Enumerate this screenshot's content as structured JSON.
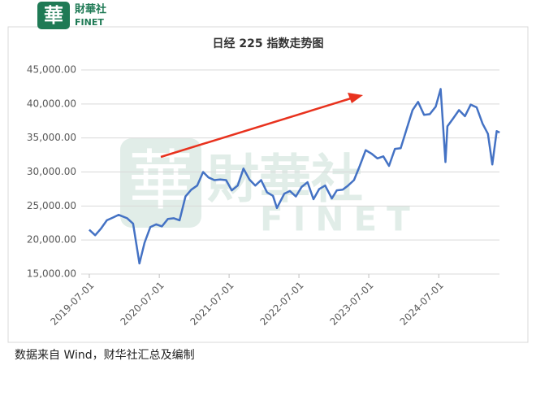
{
  "logo": {
    "mark": "華",
    "name": "財華社",
    "en": "FINET"
  },
  "chart_data": {
    "type": "line",
    "title": "日经 225 指数走势图",
    "x": [
      "2019-07-01",
      "2019-08-01",
      "2019-09-01",
      "2019-10-01",
      "2019-11-01",
      "2019-12-01",
      "2020-01-15",
      "2020-02-15",
      "2020-03-19",
      "2020-04-15",
      "2020-05-15",
      "2020-06-15",
      "2020-07-15",
      "2020-08-15",
      "2020-09-15",
      "2020-10-15",
      "2020-11-15",
      "2020-12-15",
      "2021-01-15",
      "2021-02-15",
      "2021-03-15",
      "2021-04-15",
      "2021-05-15",
      "2021-06-15",
      "2021-07-15",
      "2021-08-15",
      "2021-09-14",
      "2021-10-15",
      "2021-11-15",
      "2021-12-15",
      "2022-01-15",
      "2022-02-15",
      "2022-03-08",
      "2022-04-15",
      "2022-05-15",
      "2022-06-15",
      "2022-07-15",
      "2022-08-15",
      "2022-09-15",
      "2022-10-15",
      "2022-11-15",
      "2022-12-20",
      "2023-01-15",
      "2023-02-15",
      "2023-03-15",
      "2023-04-15",
      "2023-05-15",
      "2023-06-15",
      "2023-07-15",
      "2023-08-15",
      "2023-09-15",
      "2023-10-15",
      "2023-11-15",
      "2023-12-15",
      "2024-01-15",
      "2024-02-15",
      "2024-03-15",
      "2024-04-15",
      "2024-05-15",
      "2024-06-15",
      "2024-07-11",
      "2024-08-05",
      "2024-08-15",
      "2024-09-15",
      "2024-10-15",
      "2024-11-15",
      "2024-12-15",
      "2025-01-15",
      "2025-02-15",
      "2025-03-15",
      "2025-04-07",
      "2025-04-30",
      "2025-05-15"
    ],
    "series": [
      {
        "name": "日经225",
        "color": "#4472c4",
        "values": [
          21500,
          20700,
          21700,
          22900,
          23300,
          23700,
          23200,
          22400,
          16550,
          19600,
          21900,
          22300,
          22000,
          23100,
          23200,
          22900,
          26400,
          27400,
          28000,
          30000,
          29200,
          28800,
          28900,
          28800,
          27300,
          28000,
          30500,
          28900,
          28000,
          28800,
          27000,
          26500,
          24700,
          26800,
          27200,
          26400,
          27800,
          28500,
          26000,
          27500,
          28000,
          26100,
          27300,
          27400,
          28000,
          28800,
          30900,
          33200,
          32700,
          32000,
          32300,
          30900,
          33400,
          33500,
          36300,
          39100,
          40300,
          38400,
          38500,
          39600,
          42200,
          31460,
          36700,
          37900,
          39100,
          38200,
          39900,
          39500,
          37100,
          35600,
          31100,
          36000,
          35800
        ]
      }
    ],
    "xlim": [
      "2019-06-10",
      "2025-06-30"
    ],
    "xticks": [
      "2019-07-01",
      "2020-07-01",
      "2021-07-01",
      "2022-07-01",
      "2023-07-01",
      "2024-07-01"
    ],
    "ylim": [
      15000,
      45000
    ],
    "yticks": [
      {
        "value": 15000,
        "label": "15,000.00"
      },
      {
        "value": 20000,
        "label": "20,000.00"
      },
      {
        "value": 25000,
        "label": "25,000.00"
      },
      {
        "value": 30000,
        "label": "30,000.00"
      },
      {
        "value": 35000,
        "label": "35,000.00"
      },
      {
        "value": 40000,
        "label": "40,000.00"
      },
      {
        "value": 45000,
        "label": "45,000.00"
      }
    ],
    "grid": true
  },
  "source": "数据来自 Wind，财华社汇总及编制"
}
